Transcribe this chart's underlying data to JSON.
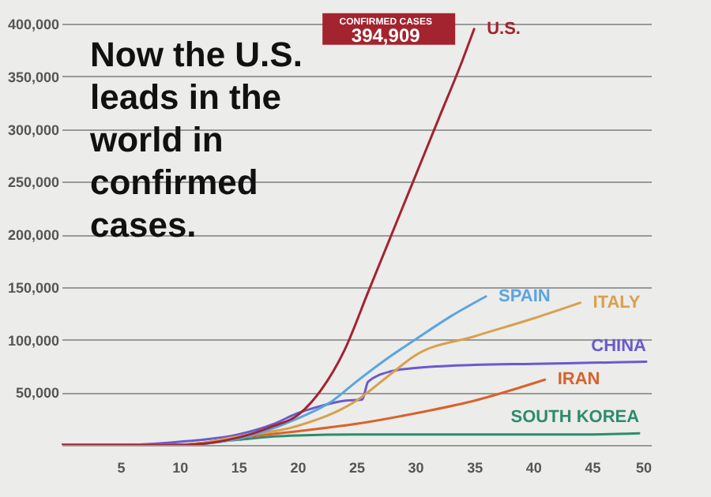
{
  "chart_data": {
    "type": "line",
    "title": "Now the U.S. leads in the world in confirmed cases.",
    "xlim": [
      0,
      50
    ],
    "xticks": [
      5,
      10,
      15,
      20,
      25,
      30,
      35,
      40,
      45,
      50
    ],
    "ylim": [
      0,
      400000
    ],
    "yticks": [
      {
        "value": 0,
        "label": null
      },
      {
        "value": 50000,
        "label": "50,000"
      },
      {
        "value": 100000,
        "label": "100,000"
      },
      {
        "value": 150000,
        "label": "150,000"
      },
      {
        "value": 200000,
        "label": "200,000"
      },
      {
        "value": 250000,
        "label": "250,000"
      },
      {
        "value": 300000,
        "label": "300,000"
      },
      {
        "value": 350000,
        "label": "350,000"
      },
      {
        "value": 400000,
        "label": "400,000"
      }
    ],
    "grid": "y",
    "legend": false,
    "marker": "none",
    "annotations": [
      "CONFIRMED CASES",
      {
        "text": "394,909",
        "x": 35,
        "y": 394909
      }
    ],
    "series": [
      {
        "name": "SOUTH KOREA",
        "color": "#2e8b6e",
        "x": [
          0,
          10,
          15,
          18,
          20,
          25,
          30,
          35,
          40,
          45,
          49
        ],
        "values": [
          0,
          0,
          5000,
          8000,
          9000,
          10000,
          10000,
          10000,
          10000,
          10000,
          11000
        ]
      },
      {
        "name": "IRAN",
        "color": "#d9622b",
        "x": [
          0,
          10,
          15,
          20,
          25,
          30,
          35,
          41
        ],
        "values": [
          0,
          0,
          7000,
          13000,
          20000,
          30000,
          42000,
          62000
        ]
      },
      {
        "name": "CHINA",
        "color": "#6a5acd",
        "x": [
          0,
          5,
          10,
          15,
          18,
          20,
          22,
          24,
          25.5,
          26,
          28,
          30,
          35,
          40,
          45,
          49.6
        ],
        "values": [
          0,
          0,
          3000,
          10000,
          20000,
          30000,
          37000,
          42000,
          43000,
          60000,
          70000,
          73000,
          76000,
          77000,
          78000,
          79000
        ]
      },
      {
        "name": "ITALY",
        "color": "#d8a04d",
        "x": [
          0,
          10,
          15,
          20,
          25,
          28,
          30,
          35,
          40,
          44
        ],
        "values": [
          0,
          0,
          8000,
          18000,
          42000,
          68000,
          85000,
          103000,
          120000,
          135000
        ]
      },
      {
        "name": "SPAIN",
        "color": "#5aa5e0",
        "x": [
          0,
          10,
          15,
          20,
          23,
          25,
          28,
          30,
          33,
          36
        ],
        "values": [
          0,
          0,
          6000,
          25000,
          42000,
          60000,
          85000,
          100000,
          122000,
          141000
        ]
      },
      {
        "name": "U.S.",
        "color": "#a3232f",
        "x": [
          0,
          10,
          15,
          18,
          20,
          22,
          24,
          26,
          28,
          30,
          32,
          34,
          35
        ],
        "values": [
          0,
          0,
          7000,
          18000,
          28000,
          52000,
          90000,
          145000,
          200000,
          255000,
          310000,
          365000,
          394909
        ]
      }
    ]
  }
}
